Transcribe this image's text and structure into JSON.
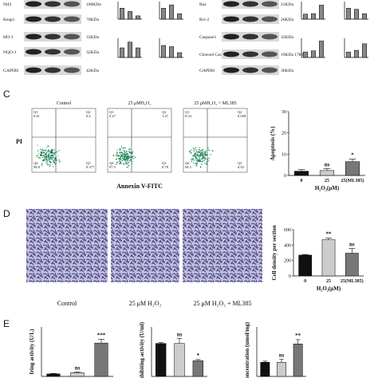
{
  "panel_ab": {
    "left_blots": [
      {
        "protein": "Nrf2",
        "size": "100KDa"
      },
      {
        "protein": "Keap1",
        "size": "70KDa"
      },
      {
        "protein": "HO-1",
        "size": "33KDa"
      },
      {
        "protein": "NQO-1",
        "size": "32KDa"
      },
      {
        "protein": "GAPDH",
        "size": "42KDa"
      }
    ],
    "right_blots": [
      {
        "protein": "Bax",
        "size": "21KDa"
      },
      {
        "protein": "Bcl-2",
        "size": "26KDa"
      },
      {
        "protein": "Caspase3",
        "size": "32KDa"
      },
      {
        "protein": "Cleaved Caspase3",
        "size": "19KDa 17KDa"
      },
      {
        "protein": "GAPDH",
        "size": "36KDa"
      }
    ],
    "mini_charts": [
      {
        "values": [
          1,
          0.7,
          0.3
        ],
        "ylim": [
          0,
          1.6
        ]
      },
      {
        "values": [
          1,
          1.3,
          0.5
        ],
        "ylim": [
          0,
          1.6
        ]
      },
      {
        "values": [
          1,
          1.6,
          1.0
        ],
        "ylim": [
          0,
          2
        ]
      },
      {
        "values": [
          1,
          0.9,
          0.4
        ],
        "ylim": [
          0,
          1.6
        ]
      },
      {
        "values": [
          1,
          1.1,
          2.8
        ],
        "ylim": [
          0,
          3.5
        ]
      },
      {
        "values": [
          1,
          0.9,
          0.5
        ],
        "ylim": [
          0,
          1.6
        ]
      },
      {
        "values": [
          1,
          1.2,
          3.0
        ],
        "ylim": [
          0,
          3.5
        ]
      },
      {
        "values": [
          1,
          1.3,
          2.5
        ],
        "ylim": [
          0,
          3.5
        ]
      }
    ]
  },
  "panel_c": {
    "label": "C",
    "y_axis": "PI",
    "x_axis": "Annexin V-FITC",
    "plots": [
      {
        "title": "Control",
        "quadrants": [
          {
            "name": "Q1",
            "value": 0.41
          },
          {
            "name": "Q2",
            "value": 0.4
          },
          {
            "name": "Q3",
            "value": 0.377
          },
          {
            "name": "Q4",
            "value": 98.8
          }
        ]
      },
      {
        "title": "25 μMH₂O₂",
        "quadrants": [
          {
            "name": "Q1",
            "value": 0.27
          },
          {
            "name": "Q2",
            "value": 1.47
          },
          {
            "name": "Q3",
            "value": 0.78
          },
          {
            "name": "Q4",
            "value": 97.5
          }
        ]
      },
      {
        "title": "25 μMH₂O₂ + ML385",
        "quadrants": [
          {
            "name": "Q1",
            "value": 0.54
          },
          {
            "name": "Q2",
            "value": 0.058
          },
          {
            "name": "Q3",
            "value": 4.92
          },
          {
            "name": "Q4",
            "value": 94.5
          }
        ]
      }
    ],
    "chart": {
      "ylabel": "Apoptosis  (%)",
      "xlabel": "H₂O₂(μM)",
      "categories": [
        "0",
        "25",
        "25(ML385)"
      ],
      "values": [
        2,
        2.3,
        6.5
      ],
      "errors": [
        0.8,
        0.9,
        1.2
      ],
      "colors": [
        "#111111",
        "#cccccc",
        "#777777"
      ],
      "ylim": [
        0,
        30
      ],
      "yticks": [
        0,
        10,
        20,
        30
      ],
      "annotations": [
        {
          "text": "ns",
          "at": 1
        },
        {
          "text": "*",
          "at": 2
        }
      ]
    }
  },
  "panel_d": {
    "label": "D",
    "captions": [
      "Control",
      "25 μM H₂O₂",
      "25 μM H₂O₂ + ML385"
    ],
    "chart": {
      "ylabel": "Cell density per section",
      "xlabel": "H₂O₂(μM)",
      "categories": [
        "0",
        "25",
        "25(ML385)"
      ],
      "values": [
        270,
        470,
        295
      ],
      "errors": [
        8,
        20,
        60
      ],
      "colors": [
        "#111111",
        "#cccccc",
        "#777777"
      ],
      "ylim": [
        0,
        600
      ],
      "yticks": [
        0,
        200,
        400,
        600
      ],
      "annotations": [
        {
          "text": "**",
          "at": 1
        },
        {
          "text": "ns",
          "at": 2
        }
      ]
    }
  },
  "panel_e": {
    "label": "E",
    "charts": [
      {
        "ylabel": "fring activity (U/L)",
        "values": [
          100,
          150,
          1350
        ],
        "errors": [
          20,
          30,
          150
        ],
        "colors": [
          "#111111",
          "#cccccc",
          "#777777"
        ],
        "ylim": [
          0,
          2000
        ],
        "annotations": [
          {
            "text": "ns",
            "at": 1
          },
          {
            "text": "***",
            "at": 2
          }
        ]
      },
      {
        "ylabel": "inhibiting activity (U/ml)",
        "values": [
          800,
          800,
          380
        ],
        "errors": [
          20,
          120,
          30
        ],
        "colors": [
          "#111111",
          "#cccccc",
          "#777777"
        ],
        "ylim": [
          0,
          1200
        ],
        "annotations": [
          {
            "text": "ns",
            "at": 1
          },
          {
            "text": "*",
            "at": 2
          }
        ]
      },
      {
        "ylabel": "concentration (umol/mg)",
        "values": [
          10,
          10,
          23
        ],
        "errors": [
          0.8,
          2,
          3
        ],
        "colors": [
          "#111111",
          "#cccccc",
          "#777777"
        ],
        "ylim": [
          0,
          35
        ],
        "annotations": [
          {
            "text": "ns",
            "at": 1
          },
          {
            "text": "**",
            "at": 2
          }
        ]
      }
    ]
  }
}
